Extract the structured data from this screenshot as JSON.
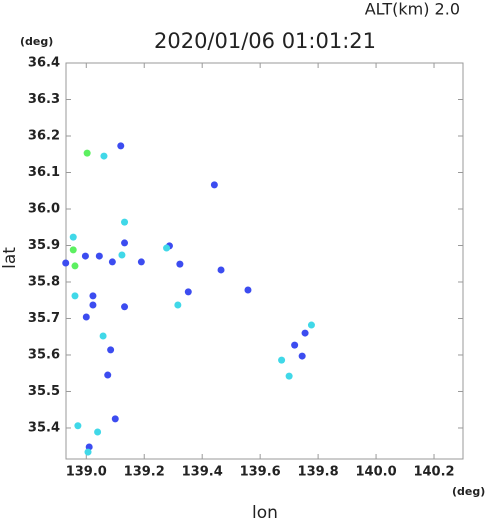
{
  "chart_data": {
    "type": "scatter",
    "title": "2020/01/06 01:01:21",
    "subtitle": "ALT(km) 2.0",
    "x_label": "lon",
    "y_label": "lat",
    "x_unit": "(deg)",
    "y_unit": "(deg)",
    "xlim": [
      138.93,
      140.3
    ],
    "ylim": [
      35.315,
      36.4
    ],
    "xticks": [
      {
        "value": 139,
        "label": "139.0"
      },
      139.2,
      139.4,
      139.6,
      139.8,
      {
        "value": 140,
        "label": "140.0"
      },
      140.2
    ],
    "yticks": [
      35.4,
      35.5,
      35.6,
      35.7,
      35.8,
      35.9,
      {
        "value": 36,
        "label": "36.0"
      },
      36.1,
      36.2,
      36.3,
      36.4
    ],
    "series": [
      {
        "color": "#3c4cf0",
        "x": [
          139.119,
          138.997,
          139.045,
          138.929,
          139.09,
          139.132,
          139.287,
          139.023,
          139.023,
          139.132,
          139.0,
          139.084,
          139.074,
          139.352,
          139.465,
          139.558,
          139.323,
          139.19,
          139.01,
          139.1,
          139.719,
          139.745,
          139.755,
          139.442
        ],
        "y": [
          36.173,
          35.871,
          35.871,
          35.852,
          35.855,
          35.907,
          35.899,
          35.762,
          35.737,
          35.732,
          35.704,
          35.614,
          35.545,
          35.773,
          35.833,
          35.778,
          35.849,
          35.855,
          35.348,
          35.425,
          35.627,
          35.597,
          35.66,
          36.066
        ]
      },
      {
        "color": "#40d8e8",
        "x": [
          139.061,
          139.132,
          138.955,
          139.123,
          139.277,
          138.961,
          139.058,
          139.316,
          138.971,
          139.006,
          139.039,
          139.674,
          139.7,
          139.777
        ],
        "y": [
          36.145,
          35.964,
          35.923,
          35.874,
          35.893,
          35.762,
          35.652,
          35.737,
          35.406,
          35.334,
          35.389,
          35.586,
          35.542,
          35.682
        ]
      },
      {
        "color": "#5cf060",
        "x": [
          139.003,
          138.955,
          138.961
        ],
        "y": [
          36.153,
          35.888,
          35.844
        ]
      }
    ]
  }
}
